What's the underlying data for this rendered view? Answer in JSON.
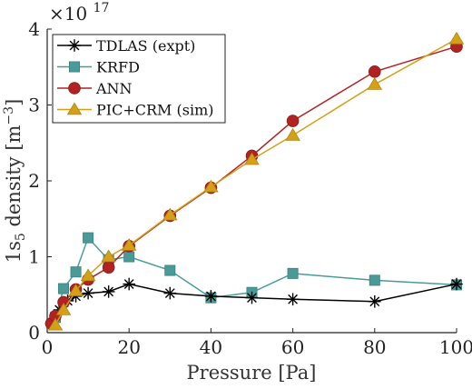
{
  "chart_data": {
    "type": "line",
    "xlabel": "Pressure [Pa]",
    "ylabel_base": "1s",
    "ylabel_sub": "5",
    "ylabel_rest": " density [m",
    "ylabel_sup": "−3",
    "ylabel_end": "]",
    "y_multiplier_base": "×10",
    "y_multiplier_exp": "17",
    "xlim": [
      0,
      100
    ],
    "ylim": [
      0,
      4
    ],
    "x_ticks": [
      0,
      20,
      40,
      60,
      80,
      100
    ],
    "y_ticks": [
      0,
      1,
      2,
      3,
      4
    ],
    "legend_position": "top-left",
    "series": [
      {
        "name": "TDLAS (expt)",
        "marker": "asterisk",
        "color": "#000000",
        "x": [
          1,
          3,
          5,
          7,
          10,
          15,
          20,
          30,
          40,
          50,
          60,
          80,
          100
        ],
        "y": [
          0.12,
          0.3,
          0.42,
          0.48,
          0.52,
          0.54,
          0.64,
          0.52,
          0.48,
          0.46,
          0.44,
          0.41,
          0.64
        ]
      },
      {
        "name": "KRFD",
        "marker": "square",
        "color": "#4a9b98",
        "x": [
          2,
          4,
          7,
          10,
          15,
          20,
          30,
          40,
          50,
          60,
          80,
          100
        ],
        "y": [
          0.2,
          0.58,
          0.8,
          1.25,
          0.96,
          1.0,
          0.82,
          0.46,
          0.53,
          0.78,
          0.69,
          0.63
        ]
      },
      {
        "name": "ANN",
        "marker": "circle",
        "color": "#b22222",
        "x": [
          1,
          2,
          4,
          7,
          10,
          15,
          20,
          30,
          40,
          50,
          60,
          80,
          100
        ],
        "y": [
          0.12,
          0.22,
          0.4,
          0.57,
          0.7,
          0.86,
          1.14,
          1.54,
          1.91,
          2.33,
          2.79,
          3.44,
          3.77
        ]
      },
      {
        "name": "PIC+CRM (sim)",
        "marker": "triangle",
        "color": "#d4a017",
        "x": [
          2,
          4,
          7,
          10,
          15,
          20,
          30,
          40,
          50,
          60,
          80,
          100
        ],
        "y": [
          0.1,
          0.3,
          0.55,
          0.75,
          1.0,
          1.15,
          1.55,
          1.92,
          2.28,
          2.6,
          3.27,
          3.87
        ]
      }
    ]
  }
}
